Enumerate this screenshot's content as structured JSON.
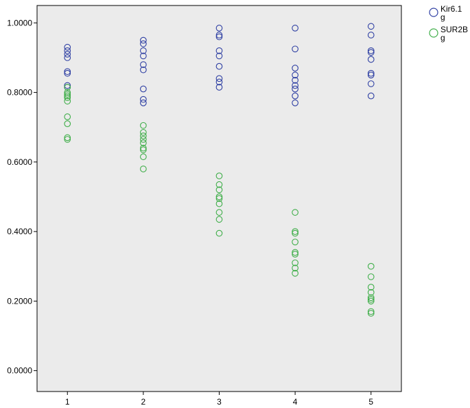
{
  "chart_data": {
    "type": "scatter",
    "title": "",
    "xlabel": "",
    "ylabel": "",
    "x_ticks": [
      "1",
      "2",
      "3",
      "4",
      "5"
    ],
    "y_ticks": [
      "0.0000",
      "0.2000",
      "0.4000",
      "0.6000",
      "0.8000",
      "1.0000"
    ],
    "xlim": [
      0.6,
      5.4
    ],
    "ylim": [
      -0.06,
      1.05
    ],
    "grid": false,
    "legend_position": "outside-top-right",
    "plot_background": "#ebebeb",
    "series": [
      {
        "name": "Kir6.1",
        "legend_label": [
          "Kir6.1",
          "g"
        ],
        "color": "#2e3fa3",
        "marker": "open-circle",
        "points": [
          [
            1,
            0.93
          ],
          [
            1,
            0.92
          ],
          [
            1,
            0.91
          ],
          [
            1,
            0.9
          ],
          [
            1,
            0.86
          ],
          [
            1,
            0.855
          ],
          [
            1,
            0.82
          ],
          [
            1,
            0.815
          ],
          [
            2,
            0.95
          ],
          [
            2,
            0.94
          ],
          [
            2,
            0.92
          ],
          [
            2,
            0.905
          ],
          [
            2,
            0.88
          ],
          [
            2,
            0.865
          ],
          [
            2,
            0.81
          ],
          [
            2,
            0.78
          ],
          [
            2,
            0.77
          ],
          [
            3,
            0.985
          ],
          [
            3,
            0.965
          ],
          [
            3,
            0.96
          ],
          [
            3,
            0.92
          ],
          [
            3,
            0.905
          ],
          [
            3,
            0.875
          ],
          [
            3,
            0.84
          ],
          [
            3,
            0.83
          ],
          [
            3,
            0.815
          ],
          [
            4,
            0.985
          ],
          [
            4,
            0.925
          ],
          [
            4,
            0.87
          ],
          [
            4,
            0.85
          ],
          [
            4,
            0.835
          ],
          [
            4,
            0.82
          ],
          [
            4,
            0.81
          ],
          [
            4,
            0.79
          ],
          [
            4,
            0.77
          ],
          [
            5,
            0.99
          ],
          [
            5,
            0.965
          ],
          [
            5,
            0.92
          ],
          [
            5,
            0.915
          ],
          [
            5,
            0.895
          ],
          [
            5,
            0.855
          ],
          [
            5,
            0.85
          ],
          [
            5,
            0.825
          ],
          [
            5,
            0.79
          ]
        ]
      },
      {
        "name": "SUR2B",
        "legend_label": [
          "SUR2B",
          "g"
        ],
        "color": "#3fae49",
        "marker": "open-circle",
        "points": [
          [
            1,
            0.815
          ],
          [
            1,
            0.8
          ],
          [
            1,
            0.795
          ],
          [
            1,
            0.79
          ],
          [
            1,
            0.785
          ],
          [
            1,
            0.775
          ],
          [
            1,
            0.73
          ],
          [
            1,
            0.71
          ],
          [
            1,
            0.67
          ],
          [
            1,
            0.665
          ],
          [
            2,
            0.705
          ],
          [
            2,
            0.685
          ],
          [
            2,
            0.675
          ],
          [
            2,
            0.665
          ],
          [
            2,
            0.655
          ],
          [
            2,
            0.64
          ],
          [
            2,
            0.635
          ],
          [
            2,
            0.615
          ],
          [
            2,
            0.58
          ],
          [
            3,
            0.56
          ],
          [
            3,
            0.535
          ],
          [
            3,
            0.52
          ],
          [
            3,
            0.5
          ],
          [
            3,
            0.495
          ],
          [
            3,
            0.48
          ],
          [
            3,
            0.455
          ],
          [
            3,
            0.435
          ],
          [
            3,
            0.395
          ],
          [
            4,
            0.455
          ],
          [
            4,
            0.4
          ],
          [
            4,
            0.395
          ],
          [
            4,
            0.37
          ],
          [
            4,
            0.34
          ],
          [
            4,
            0.335
          ],
          [
            4,
            0.31
          ],
          [
            4,
            0.295
          ],
          [
            4,
            0.28
          ],
          [
            5,
            0.3
          ],
          [
            5,
            0.27
          ],
          [
            5,
            0.24
          ],
          [
            5,
            0.225
          ],
          [
            5,
            0.21
          ],
          [
            5,
            0.205
          ],
          [
            5,
            0.2
          ],
          [
            5,
            0.17
          ],
          [
            5,
            0.165
          ]
        ]
      }
    ]
  }
}
